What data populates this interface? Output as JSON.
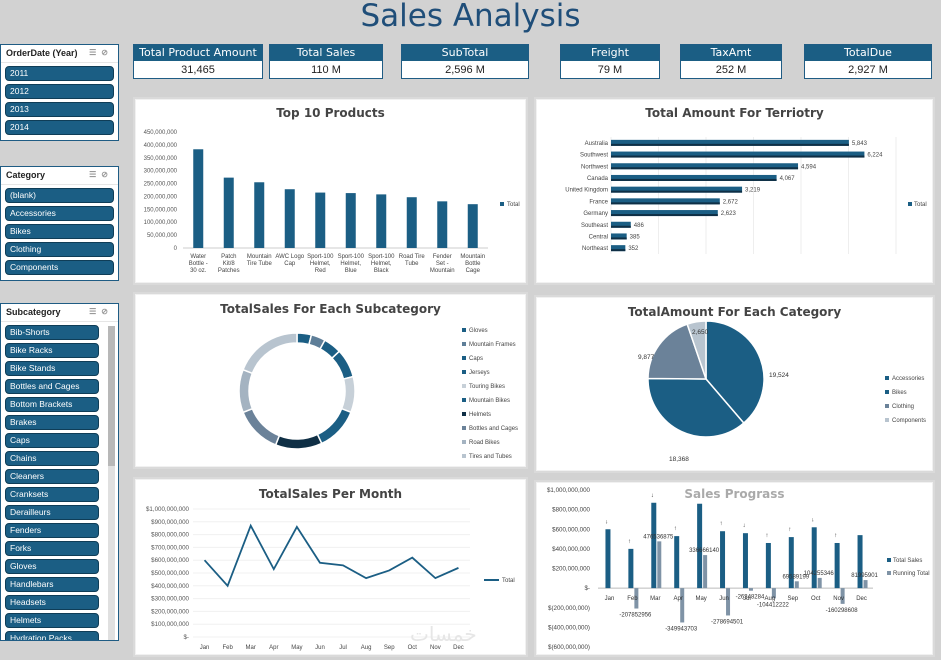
{
  "title": "Sales Analysis",
  "slicers": {
    "year": {
      "header": "OrderDate (Year)",
      "items": [
        "2011",
        "2012",
        "2013",
        "2014"
      ]
    },
    "category": {
      "header": "Category",
      "items": [
        "(blank)",
        "Accessories",
        "Bikes",
        "Clothing",
        "Components"
      ]
    },
    "subcategory": {
      "header": "Subcategory",
      "items": [
        "Bib-Shorts",
        "Bike Racks",
        "Bike Stands",
        "Bottles and Cages",
        "Bottom Brackets",
        "Brakes",
        "Caps",
        "Chains",
        "Cleaners",
        "Cranksets",
        "Derailleurs",
        "Fenders",
        "Forks",
        "Gloves",
        "Handlebars",
        "Headsets",
        "Helmets",
        "Hydration Packs"
      ]
    }
  },
  "kpis": [
    {
      "label": "Total Product Amount",
      "value": "31,465"
    },
    {
      "label": "Total Sales",
      "value": "110 M"
    },
    {
      "label": "SubTotal",
      "value": "2,596 M"
    },
    {
      "label": "Freight",
      "value": "79 M"
    },
    {
      "label": "TaxAmt",
      "value": "252 M"
    },
    {
      "label": "TotalDue",
      "value": "2,927 M"
    }
  ],
  "watermark": "خمسات",
  "colors": {
    "primary": "#1b5e84",
    "dark": "#0f2f45",
    "mid": "#5e7e98",
    "light": "#b8c4cf",
    "bg": "#d2d2d2"
  },
  "chart_data": [
    {
      "type": "bar",
      "title": "Top 10  Products",
      "categories": [
        "Water Bottle - 30 oz.",
        "Patch Kit/8 Patches",
        "Mountain Tire Tube",
        "AWC Logo Cap",
        "Sport-100 Helmet, Red",
        "Sport-100 Helmet, Blue",
        "Sport-100 Helmet, Black",
        "Road Tire Tube",
        "Fender Set - Mountain",
        "Mountain Bottle Cage"
      ],
      "series": [
        {
          "name": "Total",
          "values": [
            383000000,
            273000000,
            255000000,
            228000000,
            215000000,
            213000000,
            208000000,
            197000000,
            181000000,
            170000000
          ]
        }
      ],
      "yticks": [
        "450,000,000",
        "400,000,000",
        "350,000,000",
        "300,000,000",
        "250,000,000",
        "200,000,000",
        "150,000,000",
        "100,000,000",
        "50,000,000",
        "0"
      ],
      "ylim": [
        0,
        450000000
      ]
    },
    {
      "type": "bar",
      "title": "Total Amount For Terriotry",
      "categories": [
        "Australia",
        "Southwest",
        "Northwest",
        "Canada",
        "United Kingdom",
        "France",
        "Germany",
        "Southeast",
        "Central",
        "Northeast"
      ],
      "series": [
        {
          "name": "Total",
          "values": [
            5843,
            6224,
            4594,
            4067,
            3219,
            2672,
            2623,
            486,
            385,
            352
          ]
        }
      ],
      "labels": [
        "5,843",
        "6,224",
        "4,594",
        "4,067",
        "3,219",
        "2,672",
        "2,623",
        "486",
        "385",
        "352"
      ],
      "xlim": [
        0,
        7000
      ]
    },
    {
      "type": "pie",
      "title": "TotalSales For Each Subcategory",
      "categories": [
        "Gloves",
        "Mountain Frames",
        "Caps",
        "Jerseys",
        "Touring Bikes",
        "Mountain Bikes",
        "Helmets",
        "Bottles and Cages",
        "Road Bikes",
        "Tires and Tubes"
      ],
      "values": [
        4,
        4,
        5,
        8,
        10,
        12,
        13,
        13,
        12,
        19
      ],
      "colors": [
        "#1b5e84",
        "#5e7e98",
        "#1b5e84",
        "#1b5e84",
        "#c7d0d8",
        "#1b5e84",
        "#0f2f45",
        "#6b8299",
        "#a4b3c1",
        "#b8c4cf"
      ]
    },
    {
      "type": "pie",
      "title": "TotalAmount For Each Category",
      "categories": [
        "Accessories",
        "Bikes",
        "Clothing",
        "Components"
      ],
      "values": [
        19524,
        18368,
        9877,
        2650
      ],
      "labels": [
        "19,524",
        "18,368",
        "9,877",
        "2,650"
      ],
      "colors": [
        "#1b5e84",
        "#1b5e84",
        "#6b8299",
        "#b8c4cf"
      ]
    },
    {
      "type": "line",
      "title": "TotalSales Per Month",
      "categories": [
        "Jan",
        "Feb",
        "Mar",
        "Apr",
        "May",
        "Jun",
        "Jul",
        "Aug",
        "Sep",
        "Oct",
        "Nov",
        "Dec"
      ],
      "series": [
        {
          "name": "Total",
          "values": [
            600000000,
            400000000,
            870000000,
            530000000,
            860000000,
            580000000,
            560000000,
            460000000,
            520000000,
            620000000,
            460000000,
            540000000
          ]
        }
      ],
      "yticks": [
        "$1,000,000,000",
        "$900,000,000",
        "$800,000,000",
        "$700,000,000",
        "$600,000,000",
        "$500,000,000",
        "$400,000,000",
        "$300,000,000",
        "$200,000,000",
        "$100,000,000",
        "$-"
      ],
      "ylim": [
        0,
        1000000000
      ]
    },
    {
      "type": "bar",
      "title": "Sales Prograss",
      "categories": [
        "Jan",
        "Feb",
        "Mar",
        "Apr",
        "May",
        "Jun",
        "Jul",
        "Aug",
        "Sep",
        "Oct",
        "Nov",
        "Dec"
      ],
      "series": [
        {
          "name": "Total Sales",
          "values": [
            600000000,
            400000000,
            870000000,
            530000000,
            860000000,
            580000000,
            560000000,
            460000000,
            520000000,
            620000000,
            460000000,
            540000000
          ]
        },
        {
          "name": "Running Total",
          "values": [
            0,
            -207852956,
            476536875,
            -349943703,
            336666140,
            -278694501,
            -26348284,
            -104412222,
            69589199,
            104255346,
            -160298608,
            81995901
          ]
        }
      ],
      "labels": [
        "",
        "-207852956",
        "476536875",
        "-349943703",
        "336666140",
        "-278694501",
        "-26348284",
        "-104412222",
        "69589199",
        "104255346",
        "-160298608",
        "81995901"
      ],
      "markers": [
        "↓",
        "↑",
        "↓",
        "↑",
        "↓",
        "↑",
        "↓",
        "↑",
        "↑",
        "↓",
        "↑",
        ""
      ],
      "yticks": [
        "$1,000,000,000",
        "$800,000,000",
        "$600,000,000",
        "$400,000,000",
        "$200,000,000",
        "$-",
        "$(200,000,000)",
        "$(400,000,000)",
        "$(600,000,000)"
      ],
      "ylim": [
        -600000000,
        1000000000
      ]
    }
  ]
}
